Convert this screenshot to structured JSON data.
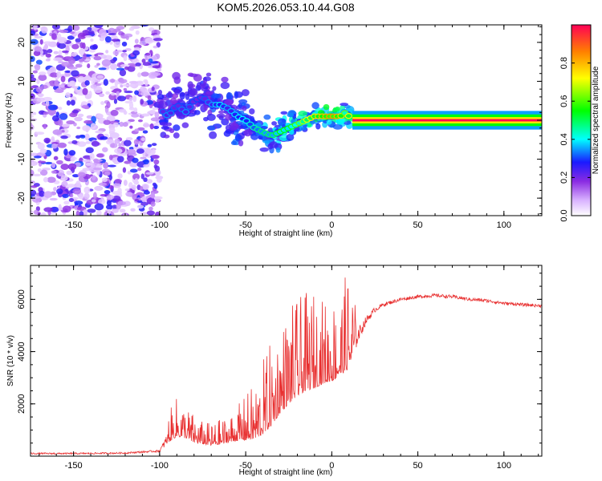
{
  "title": "KOM5.2026.053.10.44.G08",
  "colors": {
    "frame": "#000000",
    "snr_line": "#e83030",
    "scatter": "#8a2be2"
  },
  "chart_data": [
    {
      "type": "heatmap",
      "name": "spectrogram",
      "xlabel": "Height of straight line (km)",
      "ylabel": "Frequency (Hz)",
      "xlim": [
        -175,
        122
      ],
      "ylim": [
        -24.5,
        24.5
      ],
      "xticks": [
        -150,
        -100,
        -50,
        0,
        50,
        100
      ],
      "yticks": [
        -20,
        -10,
        0,
        10,
        20
      ],
      "colorbar": {
        "label": "Normalized spectral amplitude",
        "range": [
          0,
          1
        ],
        "ticks": [
          "0.0",
          "0.2",
          "0.4",
          "0.6",
          "0.8"
        ],
        "tick_values": [
          0.0,
          0.2,
          0.4,
          0.6,
          0.8
        ]
      },
      "noise_region_x": [
        -175,
        -100
      ],
      "ridge": {
        "x": [
          -100,
          -95,
          -90,
          -85,
          -80,
          -75,
          -70,
          -65,
          -60,
          -55,
          -50,
          -45,
          -40,
          -35,
          -30,
          -25,
          -20,
          -15,
          -10,
          -5,
          0,
          5,
          8,
          12,
          122
        ],
        "y": [
          3,
          1,
          4,
          2,
          5,
          6,
          4,
          4,
          3,
          1,
          0,
          -2,
          -3,
          -4,
          -3,
          -2,
          -1,
          0,
          1,
          1,
          1,
          1,
          2,
          0,
          0
        ],
        "amp": [
          0.3,
          0.35,
          0.3,
          0.35,
          0.3,
          0.3,
          0.35,
          0.4,
          0.35,
          0.4,
          0.4,
          0.45,
          0.5,
          0.5,
          0.55,
          0.55,
          0.6,
          0.7,
          0.75,
          0.8,
          0.85,
          0.8,
          0.6,
          0.9,
          0.9
        ]
      }
    },
    {
      "type": "line",
      "name": "snr",
      "xlabel": "Height of straight line (km)",
      "ylabel": "SNR (10 * v/v)",
      "xlim": [
        -175,
        122
      ],
      "ylim": [
        0,
        7300
      ],
      "xticks": [
        -150,
        -100,
        -50,
        0,
        50,
        100
      ],
      "yticks": [
        2000,
        4000,
        6000
      ],
      "series": [
        {
          "name": "SNR",
          "x": [
            -175,
            -150,
            -120,
            -100,
            -95,
            -90,
            -85,
            -80,
            -75,
            -70,
            -65,
            -60,
            -55,
            -50,
            -45,
            -40,
            -35,
            -30,
            -25,
            -20,
            -15,
            -10,
            -5,
            0,
            5,
            10,
            15,
            20,
            25,
            30,
            40,
            50,
            60,
            70,
            80,
            90,
            100,
            110,
            122
          ],
          "y": [
            100,
            100,
            120,
            200,
            700,
            1000,
            900,
            700,
            600,
            550,
            600,
            700,
            800,
            900,
            1000,
            1300,
            1700,
            2200,
            2600,
            2900,
            3100,
            3200,
            3300,
            3400,
            3600,
            4000,
            4600,
            5200,
            5600,
            5800,
            6000,
            6100,
            6150,
            6100,
            6000,
            5950,
            5850,
            5800,
            5750
          ],
          "jitter": [
            60,
            60,
            60,
            80,
            500,
            700,
            600,
            500,
            400,
            400,
            450,
            500,
            600,
            800,
            1000,
            1300,
            1500,
            1600,
            1700,
            1700,
            1700,
            1700,
            1500,
            1500,
            1500,
            1800,
            600,
            300,
            200,
            150,
            130,
            130,
            130,
            130,
            130,
            130,
            120,
            120,
            120
          ]
        }
      ]
    }
  ]
}
